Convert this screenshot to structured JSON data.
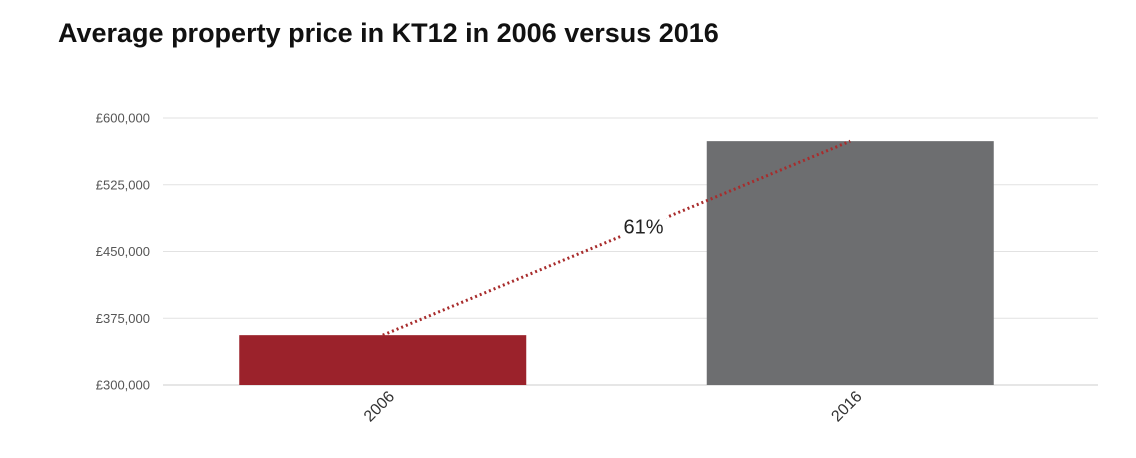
{
  "chart_data": {
    "type": "bar",
    "title": "Average property price in KT12 in 2006 versus 2016",
    "categories": [
      "2006",
      "2016"
    ],
    "values": [
      356000,
      574000
    ],
    "bar_colors": [
      "#9b222b",
      "#6d6e70"
    ],
    "ylim": [
      300000,
      600000
    ],
    "yticks": [
      300000,
      375000,
      450000,
      525000,
      600000
    ],
    "ytick_labels": [
      "£300,000",
      "£375,000",
      "£450,000",
      "£525,000",
      "£600,000"
    ],
    "grid": true,
    "annotation": {
      "text": "61%",
      "line_color": "#a82c2c",
      "line_style": "dotted"
    }
  }
}
